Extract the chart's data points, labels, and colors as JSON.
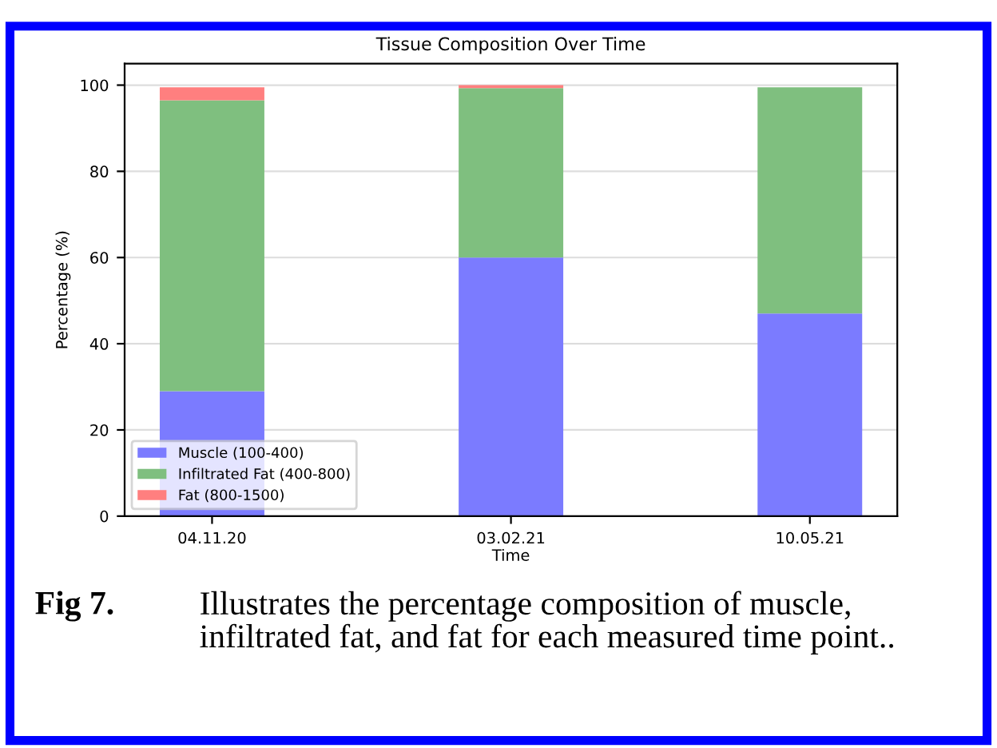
{
  "chart_data": {
    "type": "bar",
    "title": "Tissue Composition Over Time",
    "xlabel": "Time",
    "ylabel": "Percentage (%)",
    "categories": [
      "04.11.20",
      "03.02.21",
      "10.05.21"
    ],
    "stacked": true,
    "series": [
      {
        "name": "Muscle (100-400)",
        "color": "#7b7bff",
        "values": [
          29,
          60,
          47
        ]
      },
      {
        "name": "Infiltrated Fat (400-800)",
        "color": "#7fbf7f",
        "values": [
          67.5,
          39.3,
          52.5
        ]
      },
      {
        "name": "Fat (800-1500)",
        "color": "#ff7f7f",
        "values": [
          3,
          0.7,
          0
        ]
      }
    ],
    "ylim": [
      0,
      105
    ],
    "yticks": [
      0,
      20,
      40,
      60,
      80,
      100
    ],
    "grid": "y",
    "legend": "bottom left",
    "annotations": [
      "Fig 7.",
      "Illustrates the percentage composition of muscle, infiltrated fat, and fat for each measured time point.."
    ]
  }
}
